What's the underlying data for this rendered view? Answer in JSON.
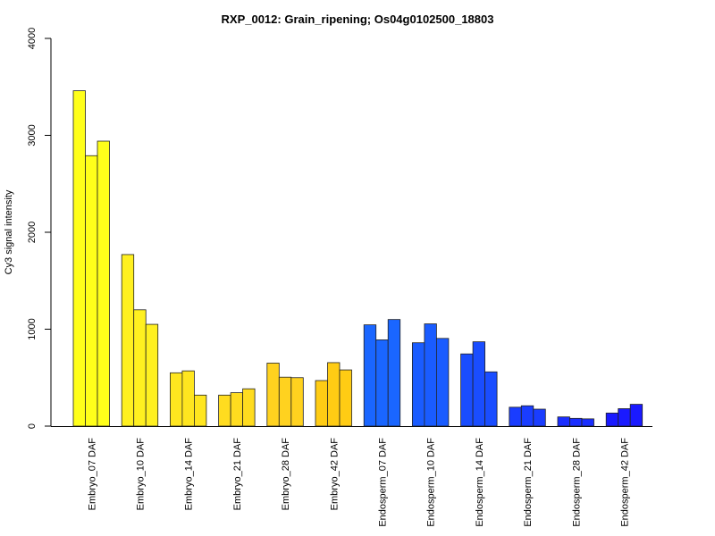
{
  "chart_data": {
    "type": "bar",
    "title": "RXP_0012: Grain_ripening; Os04g0102500_18803",
    "xlabel": "",
    "ylabel": "Cy3 signal intensity",
    "ylim": [
      0,
      4000
    ],
    "yticks": [
      "0",
      "1000",
      "2000",
      "3000",
      "4000"
    ],
    "ytick_values": [
      0,
      1000,
      2000,
      3000,
      4000
    ],
    "categories": [
      "Embryo_07 DAF",
      "Embryo_10 DAF",
      "Embryo_14 DAF",
      "Embryo_21 DAF",
      "Embryo_28 DAF",
      "Embryo_42 DAF",
      "Endosperm_07 DAF",
      "Endosperm_10 DAF",
      "Endosperm_14 DAF",
      "Endosperm_21 DAF",
      "Endosperm_28 DAF",
      "Endosperm_42 DAF"
    ],
    "group_colors": [
      "#ffff1a",
      "#fff020",
      "#ffe61f",
      "#ffdc1f",
      "#ffd21f",
      "#ffcc14",
      "#1a66ff",
      "#1a5cff",
      "#1a4dff",
      "#1a3dff",
      "#1a2eff",
      "#1a1aff"
    ],
    "values": [
      [
        3460,
        2790,
        2940
      ],
      [
        1770,
        1200,
        1050
      ],
      [
        550,
        570,
        320
      ],
      [
        320,
        345,
        385
      ],
      [
        650,
        505,
        500
      ],
      [
        470,
        655,
        580
      ],
      [
        1045,
        890,
        1100
      ],
      [
        860,
        1055,
        905
      ],
      [
        745,
        870,
        560
      ],
      [
        195,
        210,
        175
      ],
      [
        95,
        80,
        75
      ],
      [
        135,
        180,
        225
      ]
    ],
    "grid": false,
    "legend": "none"
  }
}
